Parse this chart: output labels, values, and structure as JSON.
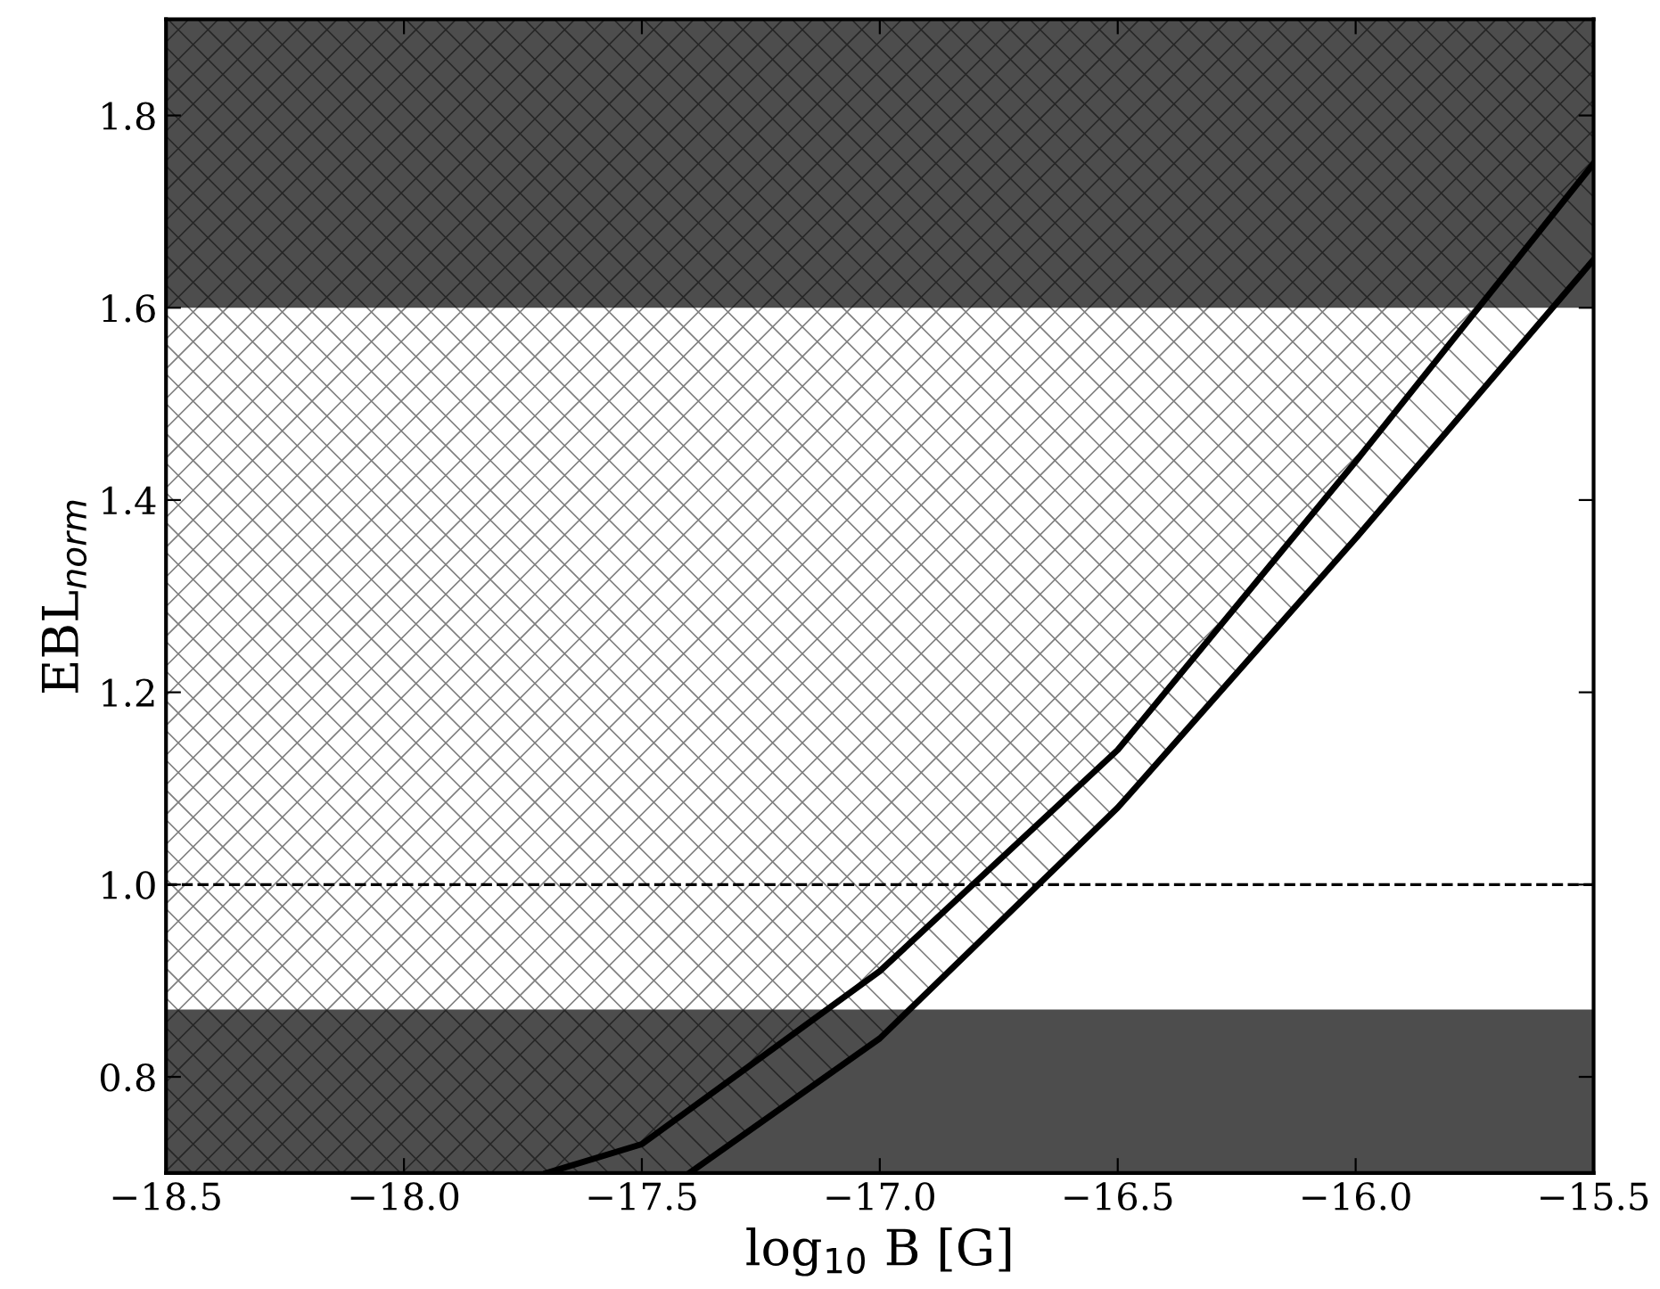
{
  "chart_data": {
    "type": "line",
    "xlabel": "log$_{10}$ B [G]",
    "ylabel": "EBL$_{norm}$",
    "xlim": [
      -18.5,
      -15.5
    ],
    "ylim": [
      0.7,
      1.9
    ],
    "xticks": [
      {
        "value": -18.5,
        "label": "−18.5"
      },
      {
        "value": -18.0,
        "label": "−18.0"
      },
      {
        "value": -17.5,
        "label": "−17.5"
      },
      {
        "value": -17.0,
        "label": "−17.0"
      },
      {
        "value": -16.5,
        "label": "−16.5"
      },
      {
        "value": -16.0,
        "label": "−16.0"
      },
      {
        "value": -15.5,
        "label": "−15.5"
      }
    ],
    "yticks": [
      {
        "value": 0.8,
        "label": "0.8"
      },
      {
        "value": 1.0,
        "label": "1.0"
      },
      {
        "value": 1.2,
        "label": "1.2"
      },
      {
        "value": 1.4,
        "label": "1.4"
      },
      {
        "value": 1.6,
        "label": "1.6"
      },
      {
        "value": 1.8,
        "label": "1.8"
      }
    ],
    "series": [
      {
        "color": "#000000",
        "x": [
          -18.5,
          -17.7,
          -17.5,
          -17.0,
          -16.5,
          -16.0,
          -15.5
        ],
        "values": [
          null,
          0.7,
          0.73,
          0.91,
          1.14,
          1.44,
          1.75
        ],
        "lower": [
          0.7,
          0.7,
          0.73,
          0.91,
          1.14,
          1.44,
          1.75
        ],
        "upper": [
          1.9,
          1.9,
          1.9,
          1.9,
          1.9,
          1.9,
          1.9
        ]
      },
      {
        "color": "#000000",
        "x": [
          -17.7,
          -17.5,
          -17.4,
          -17.0,
          -16.5,
          -16.0,
          -15.5
        ],
        "values": [
          null,
          null,
          0.7,
          0.84,
          1.08,
          1.36,
          1.65
        ],
        "lower": [
          0.7,
          0.7,
          0.7,
          0.84,
          1.08,
          1.36,
          1.65
        ],
        "upper": [
          0.7,
          0.73,
          0.77,
          0.91,
          1.14,
          1.44,
          1.75
        ]
      }
    ],
    "bands": [
      {
        "axis": "y",
        "from": 1.6,
        "to": 1.9,
        "color": "#4d4d4d"
      },
      {
        "axis": "y",
        "from": 0.7,
        "to": 0.87,
        "color": "#4d4d4d"
      }
    ],
    "ref_lines": [
      {
        "axis": "y",
        "value": 1.0,
        "color": "#000000",
        "line_style": "dashed"
      }
    ],
    "grid": false,
    "legend": false,
    "marker": "none",
    "line_style": "solid"
  }
}
